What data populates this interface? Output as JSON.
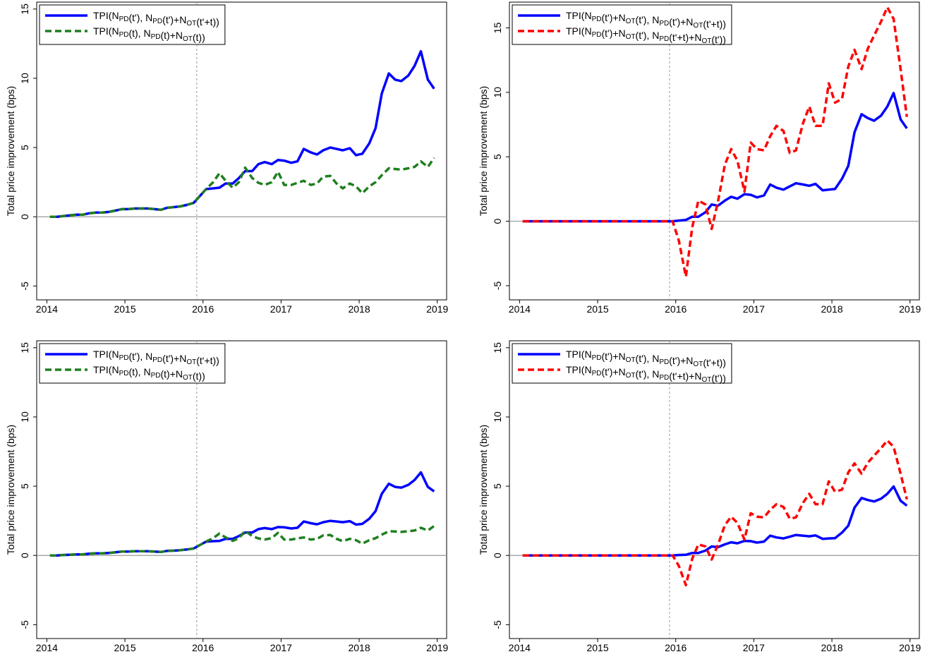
{
  "chart_data": [
    {
      "type": "line",
      "y_label": "Total price improvement (bps)",
      "xlim": [
        2013.87,
        2019.12
      ],
      "ylim": [
        -6,
        15.5
      ],
      "xticks": [
        2014,
        2015,
        2016,
        2017,
        2018,
        2019
      ],
      "yticks": [
        -5,
        0,
        5,
        10,
        15
      ],
      "vline": 2015.92,
      "hline": 0,
      "legend": "top-left",
      "x": [
        2014.04,
        2014.13,
        2014.21,
        2014.29,
        2014.38,
        2014.46,
        2014.54,
        2014.63,
        2014.71,
        2014.79,
        2014.88,
        2014.96,
        2015.04,
        2015.13,
        2015.21,
        2015.29,
        2015.38,
        2015.46,
        2015.54,
        2015.63,
        2015.71,
        2015.79,
        2015.88,
        2015.96,
        2016.04,
        2016.13,
        2016.21,
        2016.29,
        2016.38,
        2016.46,
        2016.54,
        2016.63,
        2016.71,
        2016.79,
        2016.88,
        2016.96,
        2017.04,
        2017.13,
        2017.21,
        2017.29,
        2017.38,
        2017.46,
        2017.54,
        2017.63,
        2017.71,
        2017.79,
        2017.88,
        2017.96,
        2018.04,
        2018.13,
        2018.21,
        2018.29,
        2018.38,
        2018.46,
        2018.54,
        2018.63,
        2018.71,
        2018.79,
        2018.88,
        2018.96
      ],
      "series": [
        {
          "name": "TPI(NPD(t'), NPD(t')+NOT(t'+t))",
          "color": "#0000ff",
          "style": "solid",
          "values": [
            0,
            0,
            0.05,
            0.1,
            0.15,
            0.15,
            0.25,
            0.3,
            0.3,
            0.35,
            0.45,
            0.55,
            0.55,
            0.6,
            0.6,
            0.6,
            0.55,
            0.5,
            0.65,
            0.7,
            0.75,
            0.85,
            1.0,
            1.5,
            2.0,
            2.05,
            2.1,
            2.4,
            2.4,
            2.8,
            3.3,
            3.3,
            3.8,
            3.95,
            3.8,
            4.1,
            4.05,
            3.9,
            4.0,
            4.9,
            4.65,
            4.5,
            4.8,
            5.0,
            4.9,
            4.8,
            4.95,
            4.45,
            4.55,
            5.3,
            6.4,
            8.9,
            10.35,
            9.9,
            9.8,
            10.2,
            10.9,
            11.95,
            9.9,
            9.25
          ]
        },
        {
          "name": "TPI(NPD(t), NPD(t)+NOT(t))",
          "color": "#1f7f1f",
          "style": "dashed",
          "values": [
            0,
            0,
            0.05,
            0.1,
            0.15,
            0.15,
            0.25,
            0.3,
            0.3,
            0.35,
            0.45,
            0.55,
            0.55,
            0.6,
            0.6,
            0.6,
            0.55,
            0.5,
            0.65,
            0.7,
            0.75,
            0.85,
            1.0,
            1.5,
            2.0,
            2.5,
            3.15,
            2.6,
            2.1,
            2.5,
            3.55,
            2.8,
            2.45,
            2.3,
            2.5,
            3.25,
            2.3,
            2.3,
            2.45,
            2.6,
            2.3,
            2.4,
            2.9,
            2.95,
            2.4,
            2.05,
            2.4,
            2.2,
            1.7,
            2.2,
            2.5,
            3.0,
            3.5,
            3.45,
            3.4,
            3.5,
            3.6,
            4.0,
            3.6,
            4.25
          ]
        }
      ]
    },
    {
      "type": "line",
      "y_label": "Total price improvement (bps)",
      "xlim": [
        2013.87,
        2019.12
      ],
      "ylim": [
        -6.1,
        17
      ],
      "xticks": [
        2014,
        2015,
        2016,
        2017,
        2018,
        2019
      ],
      "yticks": [
        -5,
        0,
        5,
        10,
        15
      ],
      "vline": 2015.92,
      "hline": 0,
      "legend": "top-left",
      "x": [
        2014.04,
        2014.13,
        2014.21,
        2014.29,
        2014.38,
        2014.46,
        2014.54,
        2014.63,
        2014.71,
        2014.79,
        2014.88,
        2014.96,
        2015.04,
        2015.13,
        2015.21,
        2015.29,
        2015.38,
        2015.46,
        2015.54,
        2015.63,
        2015.71,
        2015.79,
        2015.88,
        2015.96,
        2016.04,
        2016.13,
        2016.21,
        2016.29,
        2016.38,
        2016.46,
        2016.54,
        2016.63,
        2016.71,
        2016.79,
        2016.88,
        2016.96,
        2017.04,
        2017.13,
        2017.21,
        2017.29,
        2017.38,
        2017.46,
        2017.54,
        2017.63,
        2017.71,
        2017.79,
        2017.88,
        2017.96,
        2018.04,
        2018.13,
        2018.21,
        2018.29,
        2018.38,
        2018.46,
        2018.54,
        2018.63,
        2018.71,
        2018.79,
        2018.88,
        2018.96
      ],
      "series": [
        {
          "name": "TPI(NPD(t')+NOT(t'), NPD(t')+NOT(t'+t))",
          "color": "#0000ff",
          "style": "solid",
          "values": [
            0,
            0,
            0,
            0,
            0,
            0,
            0,
            0,
            0,
            0,
            0,
            0,
            0,
            0,
            0,
            0,
            0,
            0,
            0,
            0,
            0,
            0,
            0,
            0,
            0.05,
            0.1,
            0.35,
            0.35,
            0.7,
            1.3,
            1.2,
            1.6,
            1.9,
            1.75,
            2.1,
            2.05,
            1.85,
            2.0,
            2.85,
            2.6,
            2.45,
            2.7,
            2.95,
            2.85,
            2.75,
            2.9,
            2.4,
            2.45,
            2.5,
            3.3,
            4.3,
            6.9,
            8.3,
            8.0,
            7.8,
            8.2,
            8.9,
            9.95,
            7.9,
            7.2
          ]
        },
        {
          "name": "TPI(NPD(t')+NOT(t'), NPD(t'+t)+NOT(t'))",
          "color": "#ff0000",
          "style": "dashed",
          "values": [
            0,
            0,
            0,
            0,
            0,
            0,
            0,
            0,
            0,
            0,
            0,
            0,
            0,
            0,
            0,
            0,
            0,
            0,
            0,
            0,
            0,
            0,
            0,
            0,
            -1.5,
            -4.3,
            -0.5,
            1.6,
            1.3,
            -0.6,
            1.5,
            4.4,
            5.6,
            4.7,
            2.3,
            6.1,
            5.6,
            5.5,
            6.6,
            7.4,
            7.0,
            5.3,
            5.5,
            7.6,
            8.9,
            7.4,
            7.4,
            10.7,
            9.2,
            9.5,
            12.0,
            13.3,
            11.8,
            13.4,
            14.4,
            15.5,
            16.6,
            15.7,
            11.8,
            8.1
          ]
        }
      ]
    },
    {
      "type": "line",
      "y_label": "Total price improvement (bps)",
      "xlim": [
        2013.87,
        2019.12
      ],
      "ylim": [
        -6,
        15.5
      ],
      "xticks": [
        2014,
        2015,
        2016,
        2017,
        2018,
        2019
      ],
      "yticks": [
        -5,
        0,
        5,
        10,
        15
      ],
      "vline": 2015.92,
      "hline": 0,
      "legend": "top-left",
      "x": [
        2014.04,
        2014.13,
        2014.21,
        2014.29,
        2014.38,
        2014.46,
        2014.54,
        2014.63,
        2014.71,
        2014.79,
        2014.88,
        2014.96,
        2015.04,
        2015.13,
        2015.21,
        2015.29,
        2015.38,
        2015.46,
        2015.54,
        2015.63,
        2015.71,
        2015.79,
        2015.88,
        2015.96,
        2016.04,
        2016.13,
        2016.21,
        2016.29,
        2016.38,
        2016.46,
        2016.54,
        2016.63,
        2016.71,
        2016.79,
        2016.88,
        2016.96,
        2017.04,
        2017.13,
        2017.21,
        2017.29,
        2017.38,
        2017.46,
        2017.54,
        2017.63,
        2017.71,
        2017.79,
        2017.88,
        2017.96,
        2018.04,
        2018.13,
        2018.21,
        2018.29,
        2018.38,
        2018.46,
        2018.54,
        2018.63,
        2018.71,
        2018.79,
        2018.88,
        2018.96
      ],
      "series": [
        {
          "name": "TPI(NPD(t'), NPD(t')+NOT(t'+t))",
          "color": "#0000ff",
          "style": "solid",
          "values": [
            0,
            0,
            0.03,
            0.05,
            0.08,
            0.08,
            0.13,
            0.15,
            0.15,
            0.18,
            0.23,
            0.28,
            0.28,
            0.3,
            0.3,
            0.3,
            0.28,
            0.25,
            0.33,
            0.35,
            0.38,
            0.43,
            0.5,
            0.75,
            1.0,
            1.03,
            1.05,
            1.2,
            1.2,
            1.4,
            1.65,
            1.65,
            1.9,
            1.98,
            1.9,
            2.05,
            2.03,
            1.95,
            2.0,
            2.45,
            2.33,
            2.25,
            2.4,
            2.5,
            2.45,
            2.4,
            2.48,
            2.23,
            2.28,
            2.65,
            3.2,
            4.45,
            5.18,
            4.95,
            4.9,
            5.1,
            5.45,
            6.0,
            4.95,
            4.63
          ]
        },
        {
          "name": "TPI(NPD(t), NPD(t)+NOT(t))",
          "color": "#1f7f1f",
          "style": "dashed",
          "values": [
            0,
            0,
            0.03,
            0.05,
            0.08,
            0.08,
            0.13,
            0.15,
            0.15,
            0.18,
            0.23,
            0.28,
            0.28,
            0.3,
            0.3,
            0.3,
            0.28,
            0.25,
            0.33,
            0.35,
            0.38,
            0.43,
            0.5,
            0.75,
            1.0,
            1.25,
            1.58,
            1.3,
            1.05,
            1.25,
            1.78,
            1.4,
            1.23,
            1.15,
            1.25,
            1.63,
            1.15,
            1.15,
            1.23,
            1.3,
            1.15,
            1.2,
            1.45,
            1.48,
            1.2,
            1.03,
            1.2,
            1.1,
            0.85,
            1.1,
            1.25,
            1.5,
            1.75,
            1.73,
            1.7,
            1.75,
            1.8,
            2.0,
            1.8,
            2.13
          ]
        }
      ]
    },
    {
      "type": "line",
      "y_label": "Total price improvement (bps)",
      "xlim": [
        2013.87,
        2019.12
      ],
      "ylim": [
        -6,
        15.5
      ],
      "xticks": [
        2014,
        2015,
        2016,
        2017,
        2018,
        2019
      ],
      "yticks": [
        -5,
        0,
        5,
        10,
        15
      ],
      "vline": 2015.92,
      "hline": 0,
      "legend": "top-left",
      "x": [
        2014.04,
        2014.13,
        2014.21,
        2014.29,
        2014.38,
        2014.46,
        2014.54,
        2014.63,
        2014.71,
        2014.79,
        2014.88,
        2014.96,
        2015.04,
        2015.13,
        2015.21,
        2015.29,
        2015.38,
        2015.46,
        2015.54,
        2015.63,
        2015.71,
        2015.79,
        2015.88,
        2015.96,
        2016.04,
        2016.13,
        2016.21,
        2016.29,
        2016.38,
        2016.46,
        2016.54,
        2016.63,
        2016.71,
        2016.79,
        2016.88,
        2016.96,
        2017.04,
        2017.13,
        2017.21,
        2017.29,
        2017.38,
        2017.46,
        2017.54,
        2017.63,
        2017.71,
        2017.79,
        2017.88,
        2017.96,
        2018.04,
        2018.13,
        2018.21,
        2018.29,
        2018.38,
        2018.46,
        2018.54,
        2018.63,
        2018.71,
        2018.79,
        2018.88,
        2018.96
      ],
      "series": [
        {
          "name": "TPI(NPD(t')+NOT(t'), NPD(t')+NOT(t'+t))",
          "color": "#0000ff",
          "style": "solid",
          "values": [
            0,
            0,
            0,
            0,
            0,
            0,
            0,
            0,
            0,
            0,
            0,
            0,
            0,
            0,
            0,
            0,
            0,
            0,
            0,
            0,
            0,
            0,
            0,
            0,
            0.03,
            0.05,
            0.18,
            0.18,
            0.35,
            0.65,
            0.6,
            0.8,
            0.95,
            0.88,
            1.05,
            1.03,
            0.93,
            1.0,
            1.43,
            1.3,
            1.23,
            1.35,
            1.48,
            1.43,
            1.38,
            1.45,
            1.2,
            1.23,
            1.25,
            1.65,
            2.15,
            3.45,
            4.15,
            4.0,
            3.9,
            4.1,
            4.45,
            4.98,
            3.95,
            3.6
          ]
        },
        {
          "name": "TPI(NPD(t')+NOT(t'), NPD(t'+t)+NOT(t'))",
          "color": "#ff0000",
          "style": "dashed",
          "values": [
            0,
            0,
            0,
            0,
            0,
            0,
            0,
            0,
            0,
            0,
            0,
            0,
            0,
            0,
            0,
            0,
            0,
            0,
            0,
            0,
            0,
            0,
            0,
            0,
            -0.75,
            -2.15,
            -0.25,
            0.8,
            0.65,
            -0.3,
            0.75,
            2.2,
            2.8,
            2.35,
            1.15,
            3.05,
            2.8,
            2.75,
            3.3,
            3.7,
            3.5,
            2.65,
            2.75,
            3.8,
            4.45,
            3.7,
            3.7,
            5.35,
            4.6,
            4.75,
            6.0,
            6.65,
            5.9,
            6.7,
            7.2,
            7.75,
            8.3,
            7.85,
            5.9,
            4.05
          ]
        }
      ]
    }
  ]
}
